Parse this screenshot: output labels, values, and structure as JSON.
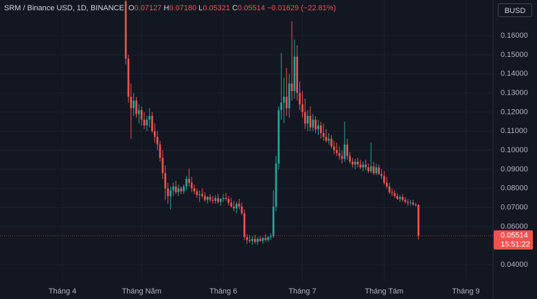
{
  "chart_data": {
    "type": "candlestick",
    "header": {
      "symbol": "SRM / Binance USD, 1D, BINANCE",
      "o_key": "O",
      "o": "0.07127",
      "h_key": "H",
      "h": "0.07180",
      "l_key": "L",
      "l": "0.05321",
      "c_key": "C",
      "c": "0.05514",
      "change": "−0.01629 (−22.81%)"
    },
    "currency": "BUSD",
    "last_price_label": "0.05514",
    "countdown": "15:51:22",
    "up_color": "#26a69a",
    "down_color": "#ef5350",
    "grid": true,
    "xlim": [
      -47.7,
      139.3
    ],
    "xticks": [
      {
        "value": -24,
        "label": "Tháng 4"
      },
      {
        "value": 6,
        "label": "Tháng Năm"
      },
      {
        "value": 37,
        "label": "Tháng 6"
      },
      {
        "value": 67,
        "label": "Tháng 7"
      },
      {
        "value": 98,
        "label": "Tháng Tám"
      },
      {
        "value": 129,
        "label": "Tháng 9"
      }
    ],
    "ylim": [
      0.0314,
      0.1787
    ],
    "yticks": [
      {
        "value": 0.04,
        "label": "0.04000"
      },
      {
        "value": 0.06,
        "label": "0.06000"
      },
      {
        "value": 0.07,
        "label": "0.07000"
      },
      {
        "value": 0.08,
        "label": "0.08000"
      },
      {
        "value": 0.09,
        "label": "0.09000"
      },
      {
        "value": 0.1,
        "label": "0.10000"
      },
      {
        "value": 0.11,
        "label": "0.11000"
      },
      {
        "value": 0.12,
        "label": "0.12000"
      },
      {
        "value": 0.13,
        "label": "0.13000"
      },
      {
        "value": 0.14,
        "label": "0.14000"
      },
      {
        "value": 0.15,
        "label": "0.15000"
      },
      {
        "value": 0.16,
        "label": "0.16000"
      }
    ],
    "candles": [
      [
        0.178,
        0.179,
        0.145,
        0.148
      ],
      [
        0.148,
        0.15,
        0.125,
        0.128
      ],
      [
        0.128,
        0.135,
        0.106,
        0.122
      ],
      [
        0.122,
        0.13,
        0.118,
        0.126
      ],
      [
        0.126,
        0.128,
        0.117,
        0.119
      ],
      [
        0.119,
        0.124,
        0.114,
        0.121
      ],
      [
        0.121,
        0.123,
        0.113,
        0.116
      ],
      [
        0.116,
        0.12,
        0.111,
        0.113
      ],
      [
        0.113,
        0.118,
        0.11,
        0.116
      ],
      [
        0.116,
        0.122,
        0.112,
        0.118
      ],
      [
        0.118,
        0.12,
        0.109,
        0.11
      ],
      [
        0.11,
        0.114,
        0.104,
        0.107
      ],
      [
        0.107,
        0.11,
        0.1,
        0.103
      ],
      [
        0.103,
        0.105,
        0.094,
        0.096
      ],
      [
        0.096,
        0.1,
        0.085,
        0.088
      ],
      [
        0.088,
        0.092,
        0.074,
        0.08
      ],
      [
        0.08,
        0.083,
        0.072,
        0.076
      ],
      [
        0.076,
        0.081,
        0.069,
        0.079
      ],
      [
        0.079,
        0.083,
        0.076,
        0.081
      ],
      [
        0.081,
        0.084,
        0.077,
        0.078
      ],
      [
        0.078,
        0.082,
        0.076,
        0.08
      ],
      [
        0.08,
        0.081,
        0.077,
        0.0785
      ],
      [
        0.0785,
        0.082,
        0.077,
        0.081
      ],
      [
        0.081,
        0.0865,
        0.079,
        0.085
      ],
      [
        0.085,
        0.0905,
        0.081,
        0.083
      ],
      [
        0.083,
        0.086,
        0.078,
        0.08
      ],
      [
        0.08,
        0.082,
        0.077,
        0.0785
      ],
      [
        0.0785,
        0.08,
        0.075,
        0.0765
      ],
      [
        0.0765,
        0.079,
        0.073,
        0.077
      ],
      [
        0.077,
        0.08,
        0.075,
        0.076
      ],
      [
        0.076,
        0.078,
        0.073,
        0.074
      ],
      [
        0.074,
        0.076,
        0.072,
        0.0755
      ],
      [
        0.0755,
        0.077,
        0.073,
        0.074
      ],
      [
        0.074,
        0.076,
        0.072,
        0.0735
      ],
      [
        0.0735,
        0.0765,
        0.072,
        0.075
      ],
      [
        0.075,
        0.077,
        0.072,
        0.073
      ],
      [
        0.073,
        0.075,
        0.071,
        0.0745
      ],
      [
        0.0745,
        0.077,
        0.073,
        0.075
      ],
      [
        0.075,
        0.0775,
        0.0735,
        0.0745
      ],
      [
        0.0745,
        0.076,
        0.071,
        0.0725
      ],
      [
        0.0725,
        0.075,
        0.07,
        0.0705
      ],
      [
        0.0705,
        0.0735,
        0.068,
        0.0695
      ],
      [
        0.0695,
        0.073,
        0.067,
        0.072
      ],
      [
        0.072,
        0.0745,
        0.069,
        0.0705
      ],
      [
        0.0705,
        0.0725,
        0.066,
        0.067
      ],
      [
        0.067,
        0.069,
        0.053,
        0.0545
      ],
      [
        0.0545,
        0.056,
        0.051,
        0.053
      ],
      [
        0.053,
        0.0555,
        0.0515,
        0.0525
      ],
      [
        0.0525,
        0.055,
        0.0505,
        0.0535
      ],
      [
        0.0535,
        0.0555,
        0.051,
        0.052
      ],
      [
        0.052,
        0.0545,
        0.0505,
        0.0535
      ],
      [
        0.0535,
        0.055,
        0.052,
        0.0525
      ],
      [
        0.0525,
        0.0545,
        0.051,
        0.054
      ],
      [
        0.054,
        0.056,
        0.052,
        0.053
      ],
      [
        0.053,
        0.055,
        0.052,
        0.0545
      ],
      [
        0.0545,
        0.0565,
        0.053,
        0.055
      ],
      [
        0.055,
        0.079,
        0.054,
        0.0705
      ],
      [
        0.0705,
        0.097,
        0.068,
        0.093
      ],
      [
        0.093,
        0.123,
        0.09,
        0.121
      ],
      [
        0.121,
        0.151,
        0.116,
        0.125
      ],
      [
        0.125,
        0.138,
        0.114,
        0.128
      ],
      [
        0.128,
        0.143,
        0.118,
        0.122
      ],
      [
        0.122,
        0.14,
        0.117,
        0.135
      ],
      [
        0.135,
        0.1675,
        0.126,
        0.131
      ],
      [
        0.131,
        0.158,
        0.127,
        0.149
      ],
      [
        0.149,
        0.155,
        0.126,
        0.13
      ],
      [
        0.13,
        0.136,
        0.121,
        0.124
      ],
      [
        0.124,
        0.131,
        0.117,
        0.12
      ],
      [
        0.12,
        0.127,
        0.111,
        0.114
      ],
      [
        0.114,
        0.121,
        0.11,
        0.118
      ],
      [
        0.118,
        0.123,
        0.11,
        0.112
      ],
      [
        0.112,
        0.119,
        0.11,
        0.116
      ],
      [
        0.116,
        0.118,
        0.109,
        0.111
      ],
      [
        0.111,
        0.116,
        0.108,
        0.113
      ],
      [
        0.113,
        0.115,
        0.106,
        0.109
      ],
      [
        0.109,
        0.114,
        0.105,
        0.107
      ],
      [
        0.107,
        0.111,
        0.104,
        0.105
      ],
      [
        0.105,
        0.109,
        0.103,
        0.106
      ],
      [
        0.106,
        0.108,
        0.101,
        0.102
      ],
      [
        0.102,
        0.105,
        0.098,
        0.1
      ],
      [
        0.1,
        0.104,
        0.097,
        0.0985
      ],
      [
        0.0985,
        0.102,
        0.095,
        0.097
      ],
      [
        0.097,
        0.1,
        0.093,
        0.0955
      ],
      [
        0.0955,
        0.115,
        0.094,
        0.103
      ],
      [
        0.103,
        0.106,
        0.095,
        0.097
      ],
      [
        0.097,
        0.099,
        0.093,
        0.094
      ],
      [
        0.094,
        0.096,
        0.091,
        0.0925
      ],
      [
        0.0925,
        0.0955,
        0.09,
        0.094
      ],
      [
        0.094,
        0.096,
        0.091,
        0.0925
      ],
      [
        0.0925,
        0.095,
        0.09,
        0.091
      ],
      [
        0.091,
        0.094,
        0.089,
        0.0925
      ],
      [
        0.0925,
        0.095,
        0.0895,
        0.091
      ],
      [
        0.091,
        0.093,
        0.088,
        0.089
      ],
      [
        0.089,
        0.104,
        0.088,
        0.0915
      ],
      [
        0.0915,
        0.094,
        0.087,
        0.088
      ],
      [
        0.088,
        0.093,
        0.087,
        0.091
      ],
      [
        0.091,
        0.0925,
        0.087,
        0.0875
      ],
      [
        0.0875,
        0.09,
        0.085,
        0.0865
      ],
      [
        0.0865,
        0.089,
        0.082,
        0.083
      ],
      [
        0.083,
        0.086,
        0.08,
        0.081
      ],
      [
        0.081,
        0.083,
        0.077,
        0.078
      ],
      [
        0.078,
        0.08,
        0.076,
        0.0775
      ],
      [
        0.0775,
        0.079,
        0.075,
        0.076
      ],
      [
        0.076,
        0.0775,
        0.074,
        0.0745
      ],
      [
        0.0745,
        0.0765,
        0.073,
        0.0755
      ],
      [
        0.0755,
        0.077,
        0.073,
        0.074
      ],
      [
        0.074,
        0.0755,
        0.072,
        0.073
      ],
      [
        0.073,
        0.0745,
        0.071,
        0.0725
      ],
      [
        0.0725,
        0.074,
        0.071,
        0.0725
      ],
      [
        0.0725,
        0.074,
        0.071,
        0.0715
      ],
      [
        0.0715,
        0.0725,
        0.0705,
        0.07127
      ],
      [
        0.07127,
        0.0718,
        0.05321,
        0.05514
      ]
    ]
  }
}
